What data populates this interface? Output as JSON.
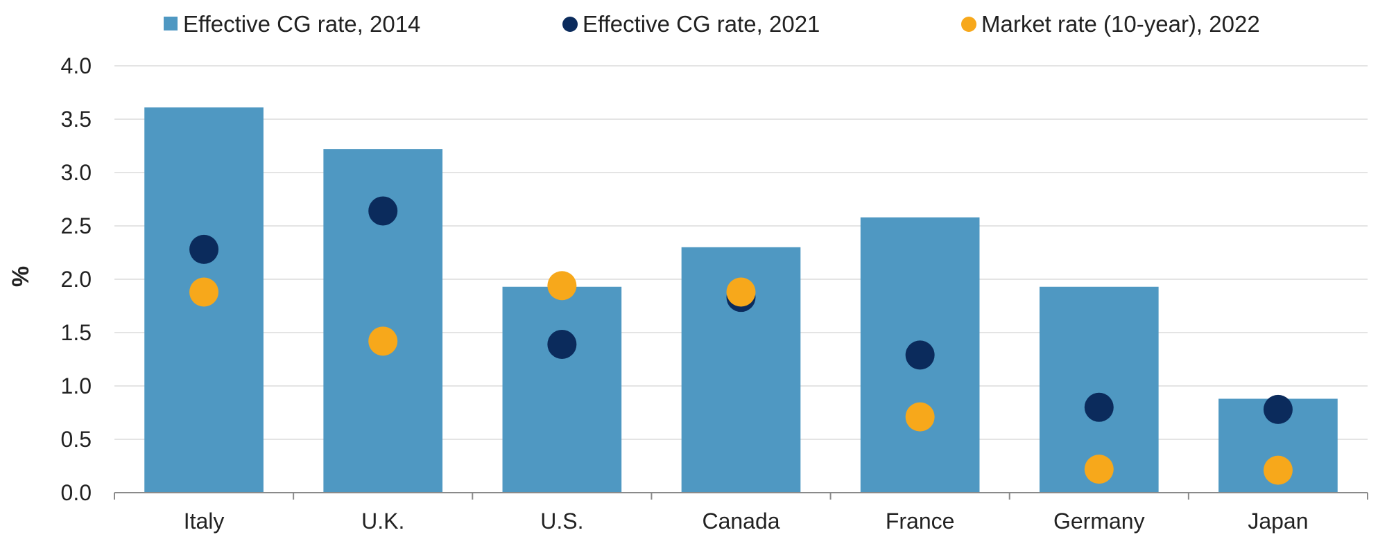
{
  "chart_data": {
    "type": "bar",
    "title": "",
    "xlabel": "",
    "ylabel": "%",
    "ylim": [
      0,
      4.0
    ],
    "yticks": [
      "0.0",
      "0.5",
      "1.0",
      "1.5",
      "2.0",
      "2.5",
      "3.0",
      "3.5",
      "4.0"
    ],
    "grid": true,
    "legend_position": "top",
    "categories": [
      "Italy",
      "U.K.",
      "U.S.",
      "Canada",
      "France",
      "Germany",
      "Japan"
    ],
    "series": [
      {
        "name": "Effective CG rate, 2014",
        "type": "bar",
        "color": "#4f98c2",
        "values": [
          3.61,
          3.22,
          1.93,
          2.3,
          2.58,
          1.93,
          0.88
        ]
      },
      {
        "name": "Effective CG rate, 2021",
        "type": "scatter",
        "color": "#0b2b5c",
        "values": [
          2.28,
          2.64,
          1.39,
          1.83,
          1.29,
          0.8,
          0.78
        ]
      },
      {
        "name": "Market rate (10-year), 2022",
        "type": "scatter",
        "color": "#f7a81b",
        "values": [
          1.88,
          1.42,
          1.94,
          1.88,
          0.71,
          0.22,
          0.21
        ]
      }
    ],
    "colors": {
      "grid": "#dcdcdc",
      "axis": "#8a8a8a",
      "text": "#222222"
    }
  }
}
